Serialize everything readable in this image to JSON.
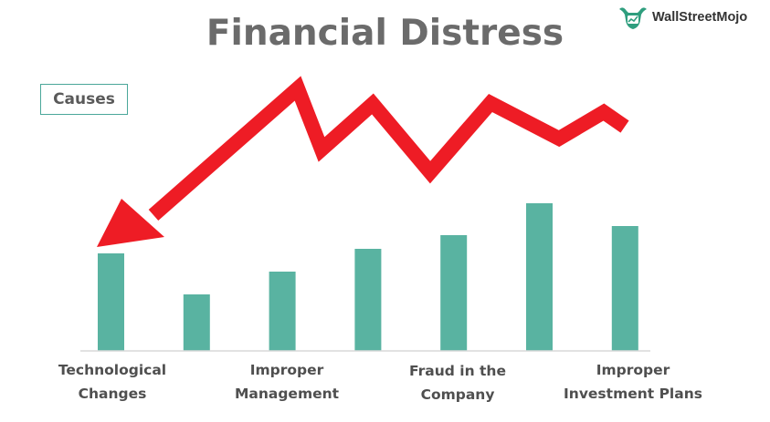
{
  "title": "Financial Distress",
  "logo": {
    "text": "WallStreetMojo",
    "icon": "bull-logo-icon"
  },
  "causes_label": "Causes",
  "categories": [
    {
      "line1": "Technological",
      "line2": "Changes"
    },
    {
      "line1": "Improper",
      "line2": "Management"
    },
    {
      "line1": "Fraud in the",
      "line2": "Company"
    },
    {
      "line1": "Improper",
      "line2": "Investment Plans"
    }
  ],
  "colors": {
    "bar": "#59b3a1",
    "arrow": "#ee1c25",
    "title": "#6b6b6b",
    "box_border": "#4aa79a"
  },
  "chart_data": {
    "type": "bar",
    "categories": [
      "Technological Changes",
      "",
      "Improper Management",
      "",
      "Fraud in the Company",
      "",
      "Improper Investment Plans"
    ],
    "values": [
      107,
      62,
      87,
      112,
      127,
      162,
      137
    ],
    "ylim": [
      0,
      170
    ],
    "grid": false,
    "legend": "none"
  }
}
